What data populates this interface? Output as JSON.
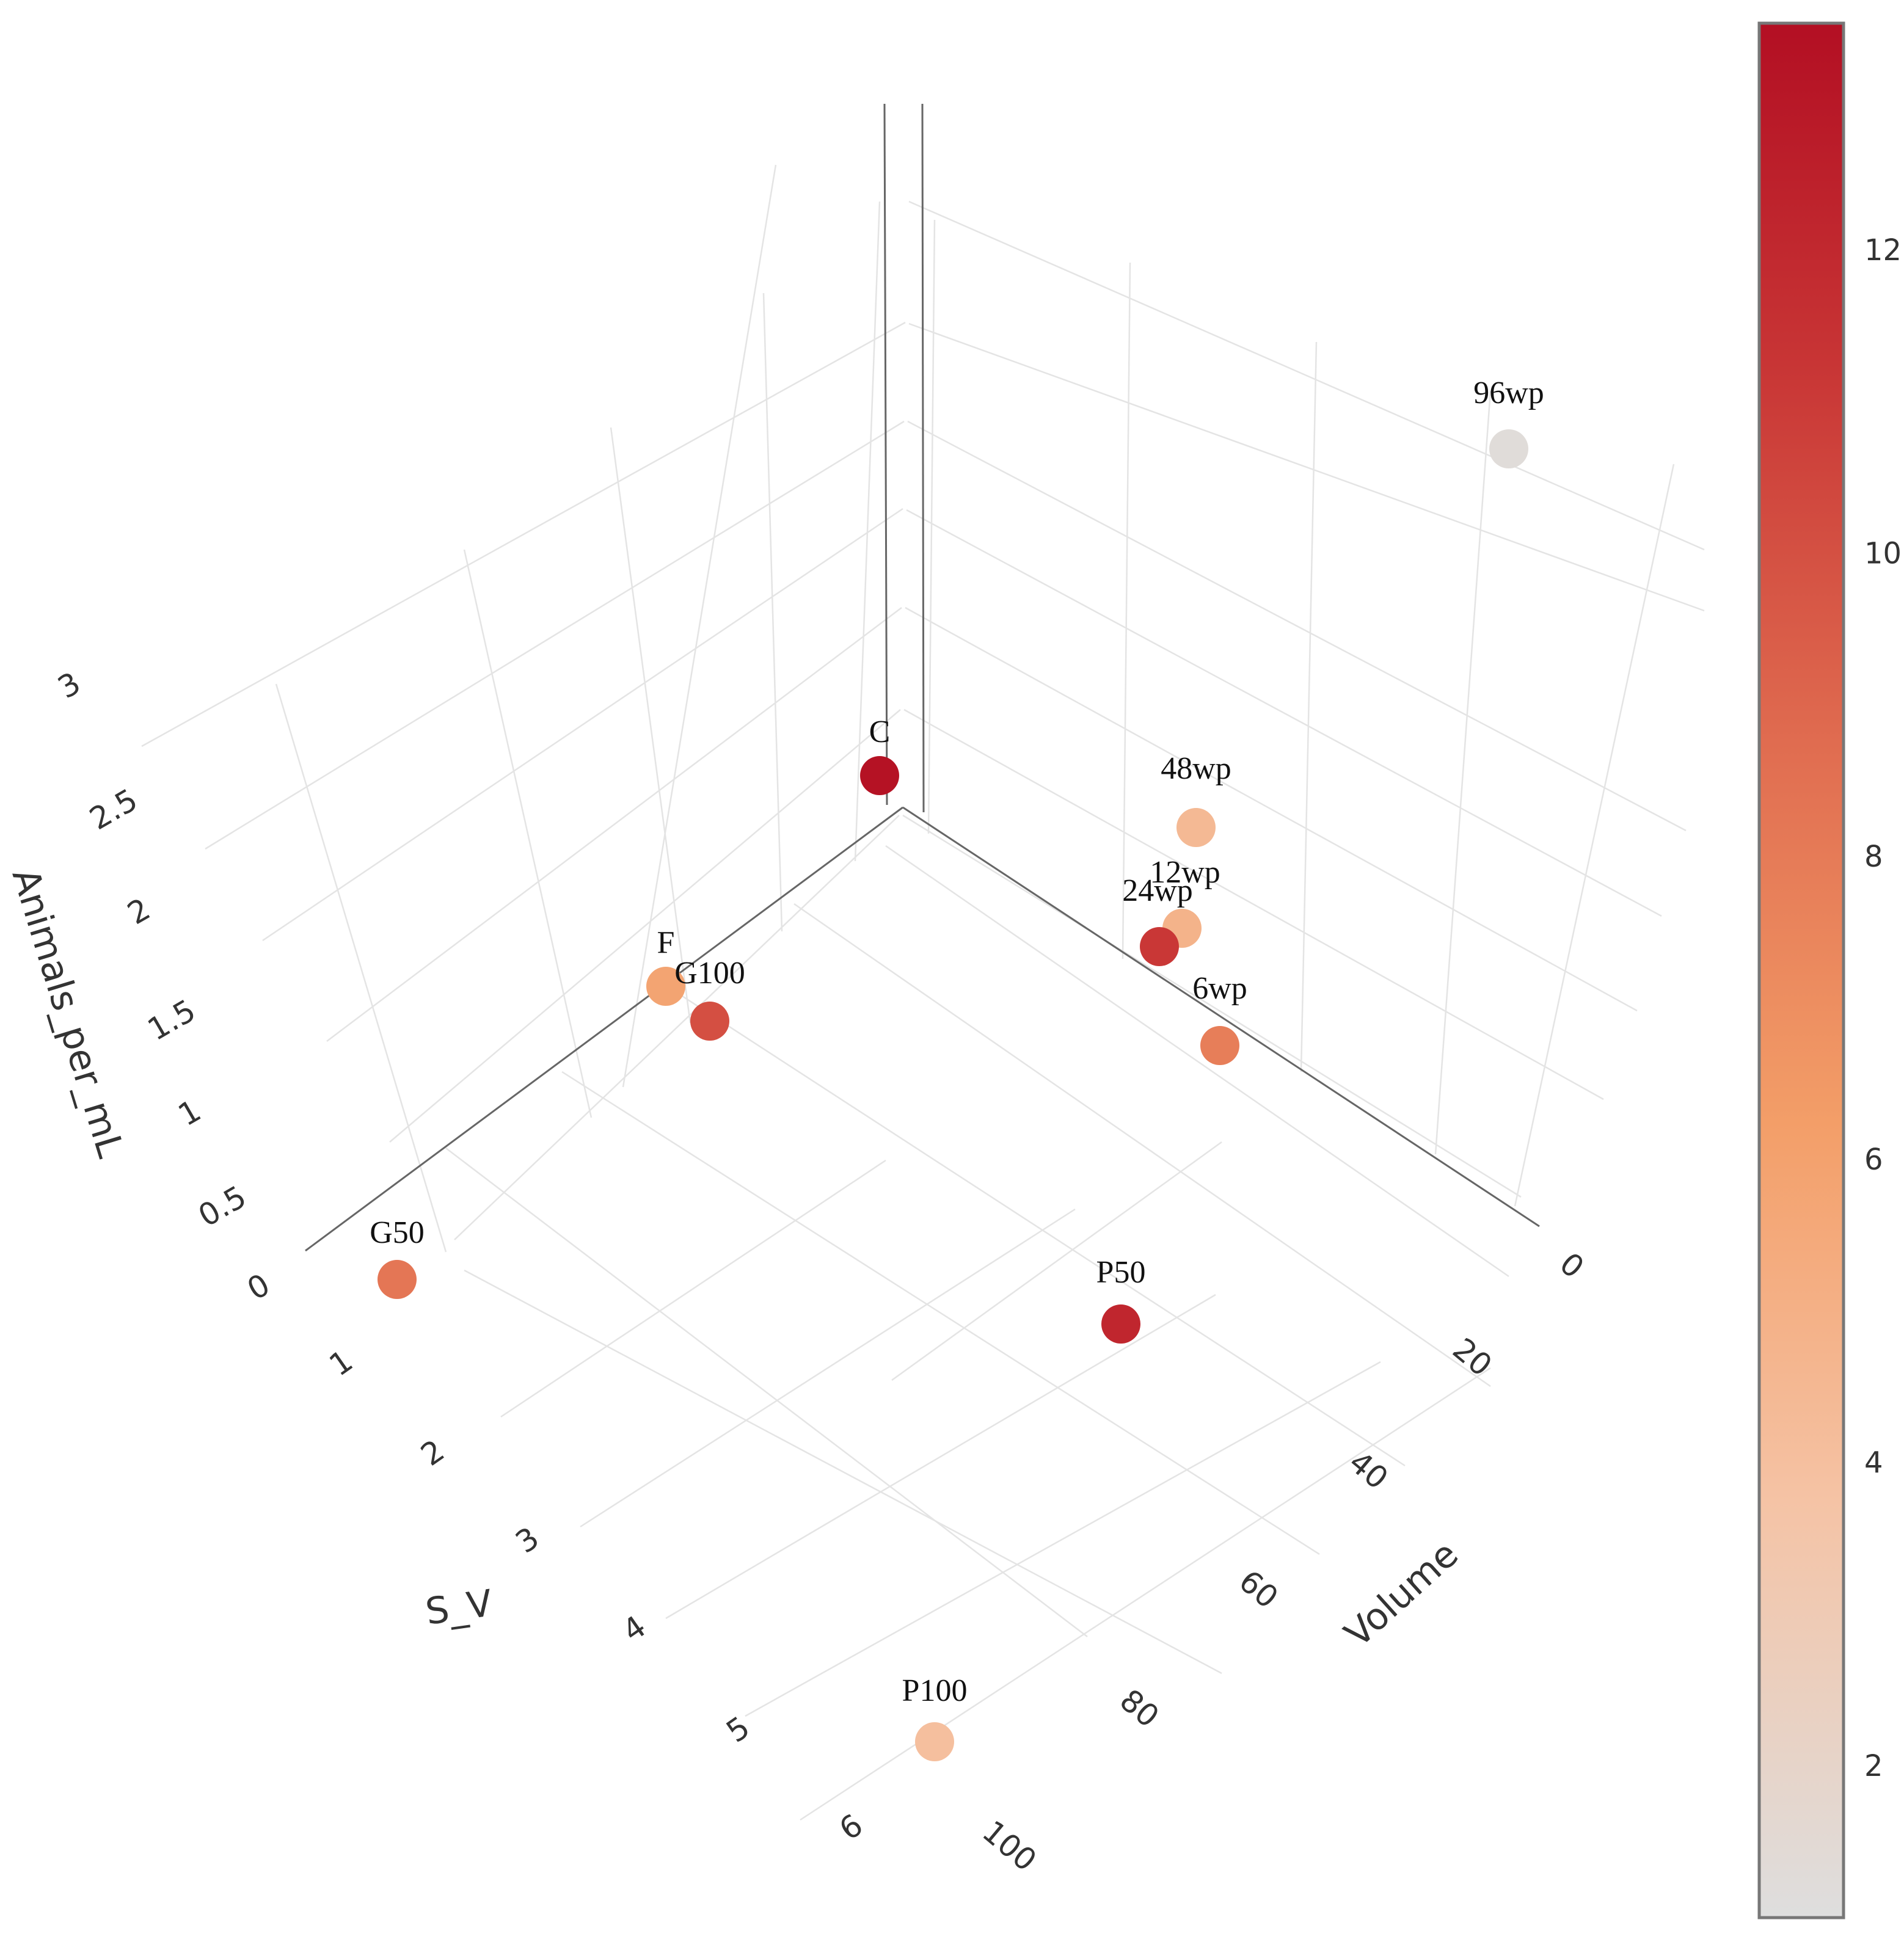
{
  "chart_data": {
    "type": "scatter3d",
    "title": "",
    "axes": {
      "x": {
        "title": "S_V",
        "ticks": [
          "0",
          "1",
          "2",
          "3",
          "4",
          "5",
          "6"
        ],
        "range": [
          0,
          6
        ]
      },
      "y": {
        "title": "Volume",
        "ticks": [
          "0",
          "20",
          "40",
          "60",
          "80",
          "100"
        ],
        "range": [
          0,
          100
        ]
      },
      "z": {
        "title": "Animals_per_mL",
        "ticks": [
          "0",
          "0.5",
          "1",
          "1.5",
          "2",
          "2.5",
          "3"
        ],
        "range": [
          0,
          3
        ]
      }
    },
    "colorbar": {
      "ticks": [
        "2",
        "4",
        "6",
        "8",
        "10",
        "12"
      ],
      "range": [
        1,
        13.5
      ],
      "colorscale": [
        "#dedede",
        "#f5c3a5",
        "#f39e68",
        "#e06c50",
        "#c83535",
        "#b30f23"
      ]
    },
    "points": [
      {
        "label": "C",
        "color_value": 13.3
      },
      {
        "label": "F",
        "color_value": 5.6
      },
      {
        "label": "G100",
        "color_value": 9.8
      },
      {
        "label": "G50",
        "color_value": 8.0
      },
      {
        "label": "48wp",
        "color_value": 4.2
      },
      {
        "label": "12wp",
        "color_value": 4.6
      },
      {
        "label": "24wp",
        "color_value": 10.9
      },
      {
        "label": "6wp",
        "color_value": 7.6
      },
      {
        "label": "96wp",
        "color_value": 1.2
      },
      {
        "label": "P50",
        "color_value": 12.0
      },
      {
        "label": "P100",
        "color_value": 3.8
      }
    ]
  }
}
